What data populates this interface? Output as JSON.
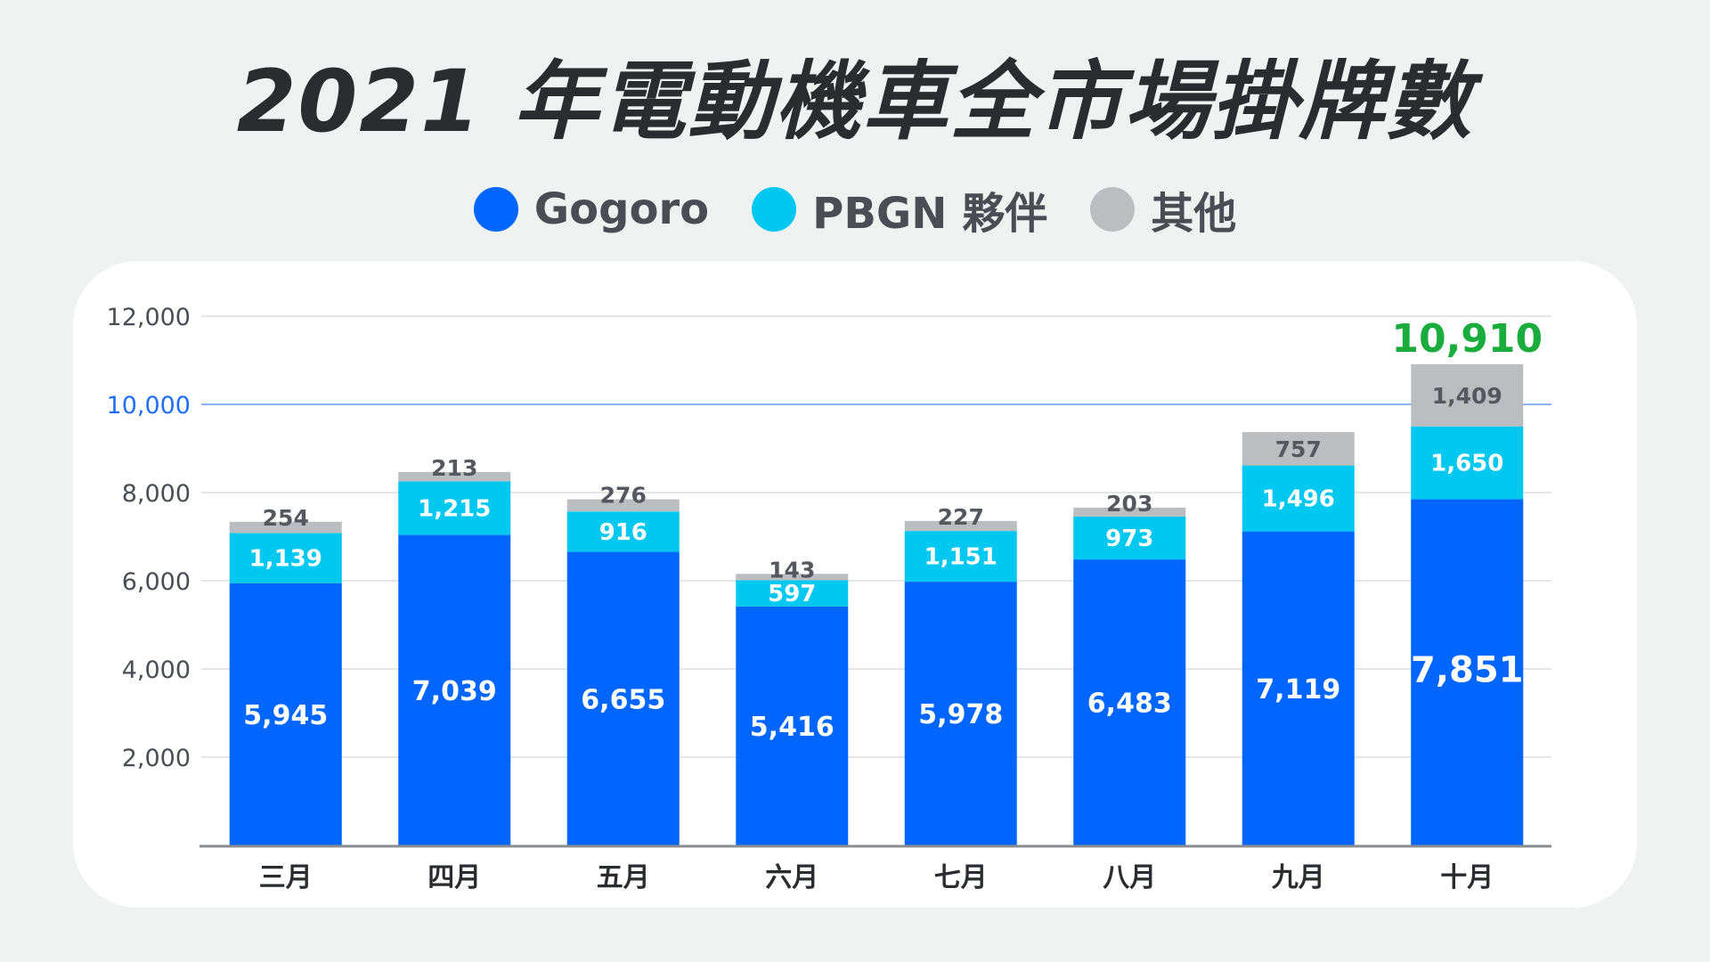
{
  "chart_data": {
    "type": "bar",
    "stacked": true,
    "title": "2021 年電動機車全市場掛牌數",
    "categories": [
      "三月",
      "四月",
      "五月",
      "六月",
      "七月",
      "八月",
      "九月",
      "十月"
    ],
    "series": [
      {
        "name": "Gogoro",
        "color": "#0066ff",
        "values": [
          5945,
          7039,
          6655,
          5416,
          5978,
          6483,
          7119,
          7851
        ],
        "labels": [
          "5,945",
          "7,039",
          "6,655",
          "5,416",
          "5,978",
          "6,483",
          "7,119",
          "7,851"
        ]
      },
      {
        "name": "PBGN 夥伴",
        "color": "#00c8f0",
        "values": [
          1139,
          1215,
          916,
          597,
          1151,
          973,
          1496,
          1650
        ],
        "labels": [
          "1,139",
          "1,215",
          "916",
          "597",
          "1,151",
          "973",
          "1,496",
          "1,650"
        ]
      },
      {
        "name": "其他",
        "color": "#bcbdc0",
        "values": [
          254,
          213,
          276,
          143,
          227,
          203,
          757,
          1409
        ],
        "labels": [
          "254",
          "213",
          "276",
          "143",
          "227",
          "203",
          "757",
          "1,409"
        ]
      }
    ],
    "ylim": [
      0,
      12000
    ],
    "yticks": [
      2000,
      4000,
      6000,
      8000,
      10000,
      12000
    ],
    "ytick_labels": [
      "2,000",
      "4,000",
      "6,000",
      "8,000",
      "10,000",
      "12,000"
    ],
    "highlight_tick": 10000,
    "highlight_color": "#1f6fff",
    "total_annotation": {
      "category": "十月",
      "label": "10,910",
      "color": "#1aac3c"
    },
    "grid": true,
    "legend_position": "top-center"
  }
}
